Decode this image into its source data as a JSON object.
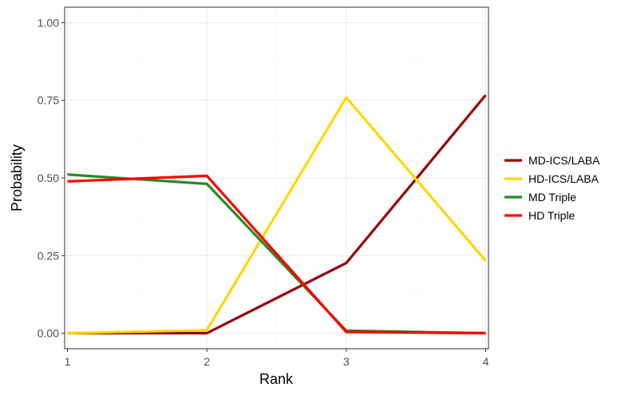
{
  "chart_data": {
    "type": "line",
    "xlabel": "Rank",
    "ylabel": "Probability",
    "x": [
      1,
      2,
      3,
      4
    ],
    "x_ticks": [
      "1",
      "2",
      "3",
      "4"
    ],
    "y_ticks": [
      "0.00",
      "0.25",
      "0.50",
      "0.75",
      "1.00"
    ],
    "xlim": [
      0.98,
      4.02
    ],
    "ylim": [
      -0.05,
      1.05
    ],
    "grid": true,
    "legend_position": "right",
    "series": [
      {
        "name": "MD-ICS/LABA",
        "color": "#990000",
        "values": [
          0.0,
          0.0,
          0.226,
          0.767
        ]
      },
      {
        "name": "HD-ICS/LABA",
        "color": "#ffd700",
        "values": [
          0.0,
          0.01,
          0.759,
          0.233
        ]
      },
      {
        "name": "MD Triple",
        "color": "#228b22",
        "values": [
          0.511,
          0.481,
          0.008,
          0.0
        ]
      },
      {
        "name": "HD Triple",
        "color": "#ff0000",
        "values": [
          0.489,
          0.507,
          0.004,
          0.0
        ]
      }
    ]
  }
}
